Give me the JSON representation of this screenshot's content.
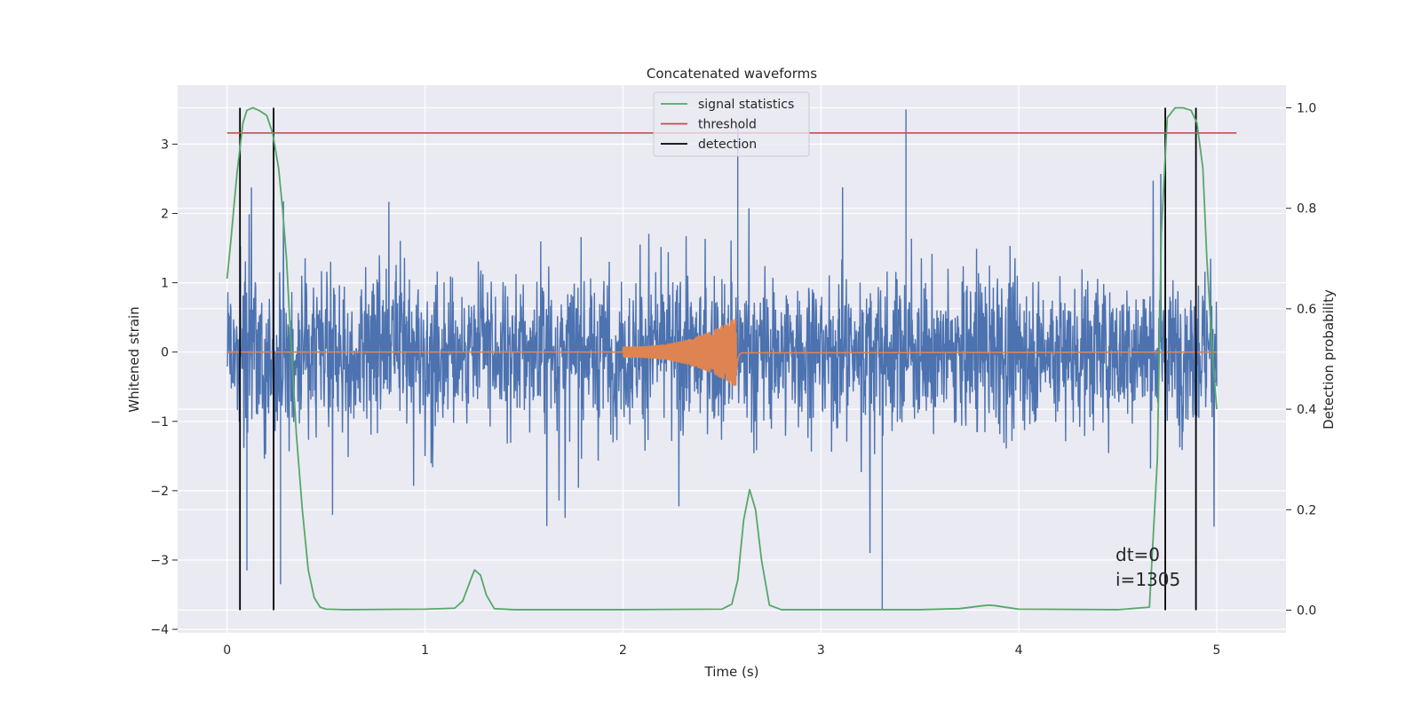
{
  "chart_data": {
    "type": "line",
    "title": "Concatenated waveforms",
    "xlabel": "Time (s)",
    "ylabel_left": "Whitened strain",
    "ylabel_right": "Detection probability",
    "xlim": [
      -0.25,
      5.35
    ],
    "ylim_left": [
      -4.05,
      3.85
    ],
    "ylim_right": [
      -0.045,
      1.045
    ],
    "x_ticks": [
      0,
      1,
      2,
      3,
      4,
      5
    ],
    "y_ticks_left": [
      -4,
      -3,
      -2,
      -1,
      0,
      1,
      2,
      3
    ],
    "y_ticks_right": [
      0.0,
      0.2,
      0.4,
      0.6,
      0.8,
      1.0
    ],
    "y_tick_labels_left": [
      "−4",
      "−3",
      "−2",
      "−1",
      "0",
      "1",
      "2",
      "3"
    ],
    "y_tick_labels_right": [
      "0.0",
      "0.2",
      "0.4",
      "0.6",
      "0.8",
      "1.0"
    ],
    "grid": true,
    "legend_placement": "upper center",
    "series": [
      {
        "name": "",
        "role": "whitened strain noise",
        "axis": "left",
        "color": "#4c72b0",
        "x_range": [
          0,
          5
        ],
        "typical_amplitude": 0.75,
        "outliers": [
          {
            "x": 3.31,
            "y": -3.72
          },
          {
            "x": 3.43,
            "y": 3.5
          },
          {
            "x": 2.58,
            "y": 3.25
          },
          {
            "x": 0.1,
            "y": -3.15
          },
          {
            "x": 0.27,
            "y": -3.35
          }
        ]
      },
      {
        "name": "",
        "role": "injected waveform",
        "axis": "left",
        "color": "#dd8452",
        "x_range": [
          0,
          5
        ],
        "chirp": {
          "start": 2.0,
          "merger": 2.57,
          "end": 2.6,
          "start_amplitude": 0.08,
          "peak_amplitude": 0.5
        }
      },
      {
        "name": "signal statistics",
        "axis": "right",
        "color": "#55a868",
        "x": [
          0,
          0.02,
          0.05,
          0.08,
          0.1,
          0.13,
          0.16,
          0.2,
          0.23,
          0.26,
          0.28,
          0.3,
          0.32,
          0.35,
          0.38,
          0.41,
          0.44,
          0.47,
          0.5,
          0.6,
          1.0,
          1.15,
          1.19,
          1.23,
          1.25,
          1.28,
          1.31,
          1.35,
          1.45,
          2.0,
          2.5,
          2.55,
          2.58,
          2.61,
          2.64,
          2.67,
          2.7,
          2.74,
          2.8,
          3.0,
          3.5,
          3.7,
          3.82,
          3.85,
          3.88,
          4.0,
          4.5,
          4.66,
          4.7,
          4.72,
          4.75,
          4.79,
          4.83,
          4.87,
          4.9,
          4.93,
          4.95,
          4.98,
          5.0
        ],
        "y": [
          0.66,
          0.74,
          0.87,
          0.97,
          0.995,
          1.0,
          0.995,
          0.985,
          0.95,
          0.88,
          0.8,
          0.7,
          0.55,
          0.35,
          0.2,
          0.08,
          0.025,
          0.006,
          0.002,
          0.001,
          0.002,
          0.004,
          0.018,
          0.06,
          0.08,
          0.07,
          0.03,
          0.003,
          0.001,
          0.001,
          0.002,
          0.012,
          0.06,
          0.18,
          0.24,
          0.2,
          0.1,
          0.01,
          0.001,
          0.001,
          0.001,
          0.003,
          0.009,
          0.01,
          0.009,
          0.002,
          0.001,
          0.006,
          0.3,
          0.75,
          0.98,
          1.0,
          1.0,
          0.995,
          0.97,
          0.88,
          0.7,
          0.5,
          0.4
        ]
      },
      {
        "name": "threshold",
        "axis": "right",
        "color": "#c44e52",
        "x": [
          0,
          5.1
        ],
        "y": [
          0.95,
          0.95
        ]
      },
      {
        "name": "detection",
        "axis": "right",
        "color": "#000000",
        "vertical_lines_x": [
          0.065,
          0.235,
          4.74,
          4.895
        ],
        "y_range": [
          0.0,
          1.0
        ]
      }
    ],
    "annotation_lines": [
      "dt=0",
      "i=1305"
    ]
  }
}
